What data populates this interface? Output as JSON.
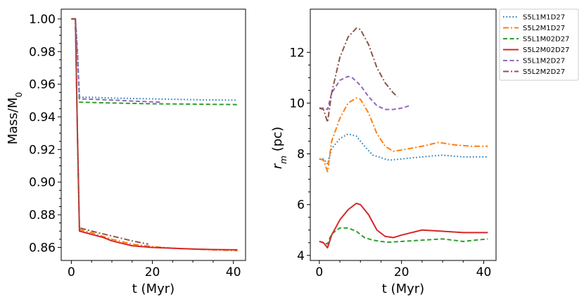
{
  "chart_data": [
    {
      "type": "line",
      "id": "left",
      "xlabel": "t (Myr)",
      "ylabel": "Mass/M",
      "ylabel_sub": "0",
      "xlim": [
        -2.5,
        43
      ],
      "ylim": [
        0.852,
        1.006
      ],
      "xticks": [
        0,
        20,
        40
      ],
      "yticks": [
        1.0,
        0.98,
        0.96,
        0.94,
        0.92,
        0.9,
        0.88,
        0.86
      ],
      "ytick_labels": [
        "1.00",
        "0.98",
        "0.96",
        "0.94",
        "0.92",
        "0.90",
        "0.88",
        "0.86"
      ],
      "series": [
        {
          "name": "S5L1M1D27",
          "x": [
            0,
            1,
            1.5,
            2,
            5,
            10,
            20,
            30,
            41
          ],
          "y": [
            1.0,
            1.0,
            0.98,
            0.952,
            0.952,
            0.9515,
            0.951,
            0.9505,
            0.9502
          ]
        },
        {
          "name": "S5L2M1D27",
          "x": [
            0,
            1,
            1.5,
            2,
            5,
            10,
            15,
            20,
            25,
            30,
            35,
            41
          ],
          "y": [
            1.0,
            1.0,
            0.93,
            0.871,
            0.869,
            0.865,
            0.862,
            0.8605,
            0.8595,
            0.859,
            0.8585,
            0.858
          ]
        },
        {
          "name": "S5L1M02D27",
          "x": [
            0,
            1,
            1.5,
            2,
            5,
            10,
            20,
            30,
            41
          ],
          "y": [
            1.0,
            1.0,
            0.98,
            0.949,
            0.9488,
            0.9485,
            0.948,
            0.9478,
            0.9475
          ]
        },
        {
          "name": "S5L2M02D27",
          "x": [
            0,
            1,
            1.5,
            2,
            5,
            8,
            10,
            15,
            20,
            25,
            30,
            35,
            41
          ],
          "y": [
            1.0,
            1.0,
            0.93,
            0.87,
            0.868,
            0.866,
            0.864,
            0.861,
            0.86,
            0.8595,
            0.859,
            0.8587,
            0.8585
          ]
        },
        {
          "name": "S5L1M2D27",
          "x": [
            0,
            1,
            1.5,
            2,
            5,
            10,
            15,
            20,
            22
          ],
          "y": [
            1.0,
            1.0,
            0.98,
            0.951,
            0.9508,
            0.9503,
            0.9497,
            0.9492,
            0.949
          ]
        },
        {
          "name": "S5L2M2D27",
          "x": [
            0,
            1,
            1.5,
            2,
            5,
            10,
            15,
            19
          ],
          "y": [
            1.0,
            1.0,
            0.93,
            0.872,
            0.87,
            0.867,
            0.864,
            0.862
          ]
        }
      ]
    },
    {
      "type": "line",
      "id": "right",
      "xlabel": "t (Myr)",
      "ylabel": "r",
      "ylabel_sub": "m",
      "ylabel_suffix": " (pc)",
      "xlim": [
        -2.2,
        43
      ],
      "ylim": [
        3.8,
        13.7
      ],
      "xticks": [
        0,
        20,
        40
      ],
      "yticks": [
        4,
        6,
        8,
        10,
        12
      ],
      "ytick_labels": [
        "4",
        "6",
        "8",
        "10",
        "12"
      ],
      "series": [
        {
          "name": "S5L1M1D27",
          "x": [
            0,
            1,
            2,
            3,
            5,
            7,
            9,
            11,
            13,
            15,
            17,
            20,
            25,
            30,
            35,
            41
          ],
          "y": [
            7.8,
            7.8,
            7.6,
            8.2,
            8.6,
            8.78,
            8.7,
            8.3,
            7.95,
            7.85,
            7.75,
            7.8,
            7.88,
            7.95,
            7.88,
            7.88
          ]
        },
        {
          "name": "S5L2M1D27",
          "x": [
            0,
            1,
            2,
            3,
            5,
            7,
            9,
            10,
            12,
            14,
            16,
            18,
            20,
            25,
            29,
            33,
            37,
            41
          ],
          "y": [
            7.8,
            7.75,
            7.3,
            8.5,
            9.4,
            10.0,
            10.2,
            10.15,
            9.6,
            8.8,
            8.3,
            8.1,
            8.15,
            8.3,
            8.45,
            8.35,
            8.3,
            8.3
          ]
        },
        {
          "name": "S5L1M02D27",
          "x": [
            0,
            1,
            2,
            3,
            5,
            7,
            9,
            11,
            13,
            15,
            17,
            20,
            25,
            30,
            35,
            41
          ],
          "y": [
            4.55,
            4.5,
            4.45,
            4.85,
            5.08,
            5.08,
            4.95,
            4.7,
            4.6,
            4.55,
            4.52,
            4.55,
            4.6,
            4.65,
            4.55,
            4.65
          ]
        },
        {
          "name": "S5L2M02D27",
          "x": [
            0,
            1,
            2,
            3,
            5,
            7,
            9,
            10,
            12,
            14,
            16,
            18,
            20,
            25,
            30,
            35,
            41
          ],
          "y": [
            4.55,
            4.5,
            4.3,
            4.8,
            5.4,
            5.8,
            6.05,
            6.0,
            5.6,
            5.0,
            4.75,
            4.7,
            4.8,
            5.0,
            4.95,
            4.9,
            4.9
          ]
        },
        {
          "name": "S5L1M2D27",
          "x": [
            0,
            1,
            2,
            3,
            5,
            7,
            8,
            10,
            12,
            14,
            16,
            18,
            20,
            22
          ],
          "y": [
            9.8,
            9.8,
            9.75,
            10.4,
            10.9,
            11.05,
            11.0,
            10.7,
            10.25,
            9.9,
            9.75,
            9.75,
            9.8,
            9.9
          ]
        },
        {
          "name": "S5L2M2D27",
          "x": [
            0,
            1,
            2,
            3,
            5,
            7,
            9,
            10,
            12,
            14,
            16,
            18,
            19
          ],
          "y": [
            9.8,
            9.75,
            9.25,
            10.4,
            11.8,
            12.6,
            12.95,
            12.9,
            12.3,
            11.4,
            10.8,
            10.4,
            10.25
          ]
        }
      ]
    }
  ],
  "legend": {
    "placement": "outside-right",
    "entries": [
      {
        "name": "S5L1M1D27",
        "color": "#1f77b4",
        "style": "dotted"
      },
      {
        "name": "S5L2M1D27",
        "color": "#ff7f0e",
        "style": "dashdot"
      },
      {
        "name": "S5L1M02D27",
        "color": "#2ca02c",
        "style": "dashed"
      },
      {
        "name": "S5L2M02D27",
        "color": "#d62728",
        "style": "solid"
      },
      {
        "name": "S5L1M2D27",
        "color": "#9467bd",
        "style": "dashed"
      },
      {
        "name": "S5L2M2D27",
        "color": "#8c564b",
        "style": "dashdot"
      }
    ]
  }
}
